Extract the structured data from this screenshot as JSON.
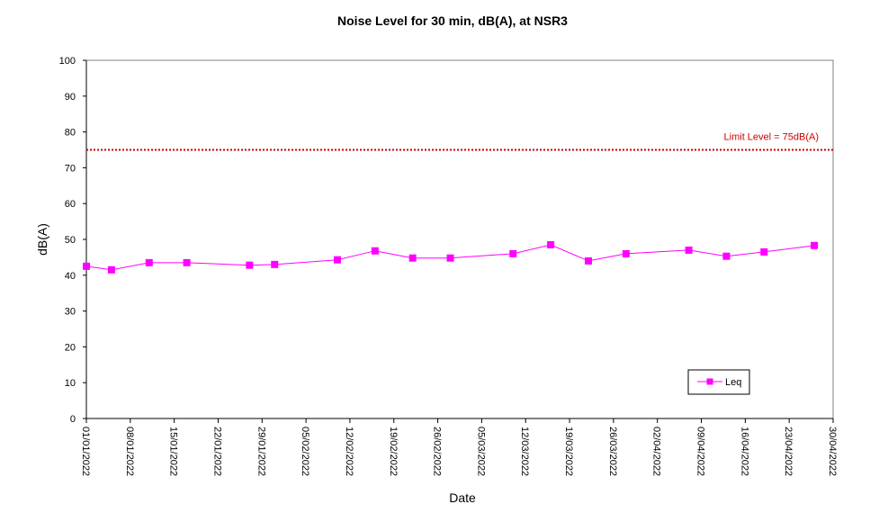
{
  "chart_data": {
    "type": "line",
    "title": "Noise Level for 30 min, dB(A), at NSR3",
    "xlabel": "Date",
    "ylabel": "dB(A)",
    "ylim": [
      0,
      100
    ],
    "yticks": [
      0,
      10,
      20,
      30,
      40,
      50,
      60,
      70,
      80,
      90,
      100
    ],
    "xlim": [
      "2022-01-01",
      "2022-04-30"
    ],
    "xtick_labels": [
      "01/01/2022",
      "08/01/2022",
      "15/01/2022",
      "22/01/2022",
      "29/01/2022",
      "05/02/2022",
      "12/02/2022",
      "19/02/2022",
      "26/02/2022",
      "05/03/2022",
      "12/03/2022",
      "19/03/2022",
      "26/03/2022",
      "02/04/2022",
      "09/04/2022",
      "16/04/2022",
      "23/04/2022",
      "30/04/2022"
    ],
    "grid": false,
    "legend": {
      "position": "bottom-right",
      "entries": [
        "Leq"
      ]
    },
    "limit": {
      "value": 75,
      "label": "Limit Level  = 75dB(A)",
      "color": "#cc0000",
      "style": "dotted"
    },
    "series": [
      {
        "name": "Leq",
        "color": "#ff00ff",
        "marker": "square",
        "points": [
          {
            "x": "2022-01-01",
            "y": 42.5
          },
          {
            "x": "2022-01-05",
            "y": 41.5
          },
          {
            "x": "2022-01-11",
            "y": 43.5
          },
          {
            "x": "2022-01-17",
            "y": 43.5
          },
          {
            "x": "2022-01-27",
            "y": 42.8
          },
          {
            "x": "2022-01-31",
            "y": 43.0
          },
          {
            "x": "2022-02-10",
            "y": 44.3
          },
          {
            "x": "2022-02-16",
            "y": 46.8
          },
          {
            "x": "2022-02-22",
            "y": 44.8
          },
          {
            "x": "2022-02-28",
            "y": 44.8
          },
          {
            "x": "2022-03-10",
            "y": 46.0
          },
          {
            "x": "2022-03-16",
            "y": 48.5
          },
          {
            "x": "2022-03-22",
            "y": 44.0
          },
          {
            "x": "2022-03-28",
            "y": 46.0
          },
          {
            "x": "2022-04-07",
            "y": 47.0
          },
          {
            "x": "2022-04-13",
            "y": 45.3
          },
          {
            "x": "2022-04-19",
            "y": 46.5
          },
          {
            "x": "2022-04-27",
            "y": 48.3
          }
        ]
      }
    ]
  }
}
